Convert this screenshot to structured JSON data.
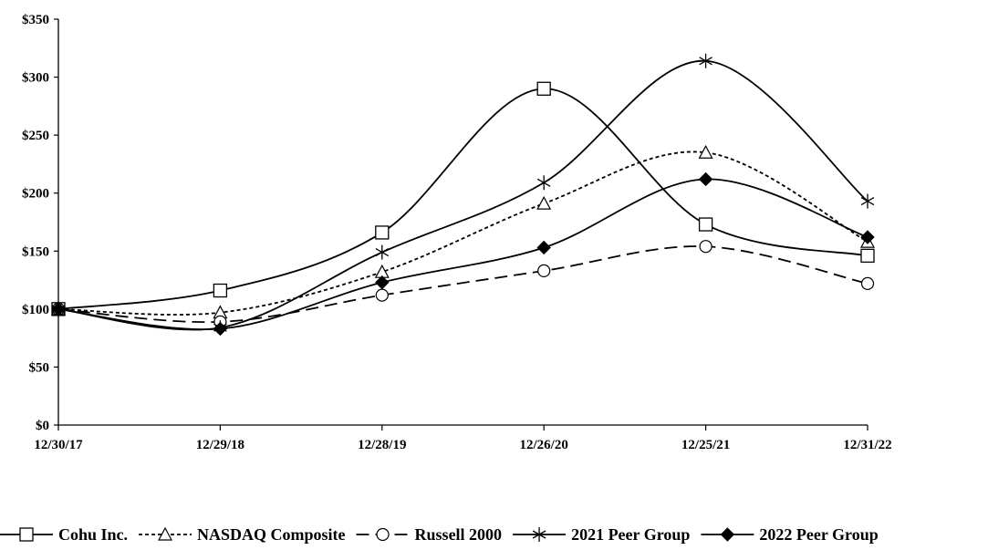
{
  "chart_data": {
    "type": "line",
    "title": "",
    "xlabel": "",
    "ylabel": "",
    "categories": [
      "12/30/17",
      "12/29/18",
      "12/28/19",
      "12/26/20",
      "12/25/21",
      "12/31/22"
    ],
    "y_ticks": [
      "$0",
      "$50",
      "$100",
      "$150",
      "$200",
      "$250",
      "$300",
      "$350"
    ],
    "ylim": [
      0,
      350
    ],
    "grid": false,
    "legend_position": "bottom",
    "series": [
      {
        "name": "Cohu Inc.",
        "values": [
          100,
          116,
          166,
          290,
          173,
          146
        ],
        "marker": "square",
        "dash": "solid",
        "color": "#000000"
      },
      {
        "name": "NASDAQ Composite",
        "values": [
          100,
          97,
          132,
          191,
          235,
          158
        ],
        "marker": "triangle",
        "dash": "dotted",
        "color": "#000000"
      },
      {
        "name": "Russell 2000",
        "values": [
          100,
          89,
          112,
          133,
          154,
          122
        ],
        "marker": "circle",
        "dash": "dashed",
        "color": "#000000"
      },
      {
        "name": "2021 Peer Group",
        "values": [
          100,
          84,
          149,
          209,
          314,
          193
        ],
        "marker": "asterisk",
        "dash": "solid",
        "color": "#000000"
      },
      {
        "name": "2022 Peer Group",
        "values": [
          100,
          83,
          123,
          153,
          212,
          162
        ],
        "marker": "diamond",
        "dash": "solid",
        "color": "#000000"
      }
    ]
  }
}
